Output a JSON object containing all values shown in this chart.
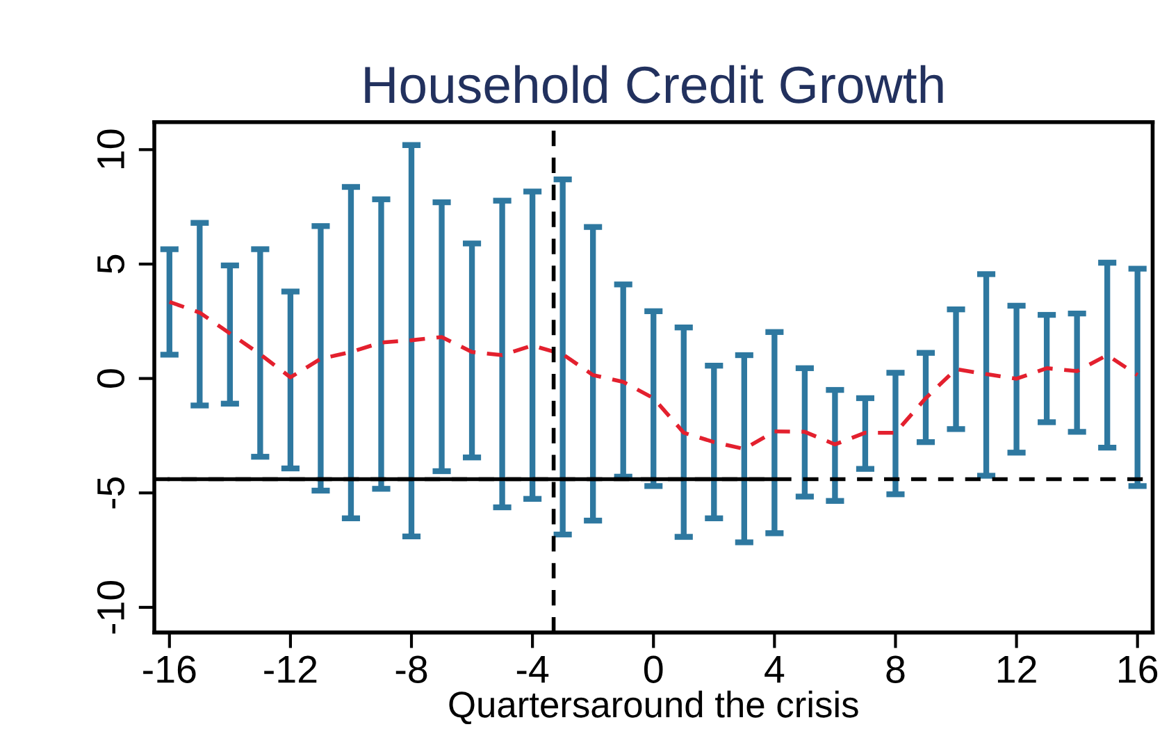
{
  "chart_data": {
    "type": "line",
    "title": "Household Credit Growth",
    "xlabel": "Quartersaround the crisis",
    "x": [
      -16,
      -15,
      -14,
      -13,
      -12,
      -11,
      -10,
      -9,
      -8,
      -7,
      -6,
      -5,
      -4,
      -3,
      -2,
      -1,
      0,
      1,
      2,
      3,
      4,
      5,
      6,
      7,
      8,
      9,
      10,
      11,
      12,
      13,
      14,
      15,
      16
    ],
    "series": [
      {
        "line_style": "dashed",
        "color": "#e3202e",
        "values": [
          3.35,
          2.88,
          1.97,
          1.06,
          0.05,
          0.86,
          1.16,
          1.57,
          1.67,
          1.81,
          1.16,
          1.02,
          1.44,
          1.06,
          0.15,
          -0.15,
          -0.86,
          -2.37,
          -2.78,
          -3.08,
          -2.31,
          -2.33,
          -2.88,
          -2.37,
          -2.37,
          -0.86,
          0.41,
          0.19,
          -0.01,
          0.45,
          0.32,
          1.02,
          0.15
        ],
        "colors": [
          "#2e78a0",
          "#2e78a0",
          "#2e78a0",
          "#2e78a0",
          "#2e78a0",
          "#2e78a0",
          "#2e78a0",
          "#2e78a0",
          "#2e78a0",
          "#2e78a0",
          "#2e78a0",
          "#2e78a0",
          "#2e78a0",
          "#2e78a0",
          "#2e78a0",
          "#2e78a0",
          "#2e78a0",
          "#2e78a0",
          "#2e78a0",
          "#2e78a0",
          "#2e78a0",
          "#2e78a0",
          "#2e78a0",
          "#2e78a0",
          "#2e78a0",
          "#2e78a0",
          "#2e78a0",
          "#2e78a0",
          "#2e78a0",
          "#2e78a0",
          "#2e78a0",
          "#2e78a0",
          "#2e78a0"
        ],
        "errors": [
          [
            1.04,
            5.65
          ],
          [
            -1.18,
            6.8
          ],
          [
            -1.1,
            4.94
          ],
          [
            -3.42,
            5.65
          ],
          [
            -3.93,
            3.8
          ],
          [
            -4.9,
            6.66
          ],
          [
            -6.11,
            8.37
          ],
          [
            -4.82,
            7.83
          ],
          [
            -6.9,
            10.2
          ],
          [
            -4.05,
            7.7
          ],
          [
            -3.45,
            5.9
          ],
          [
            -5.63,
            7.77
          ],
          [
            -5.26,
            8.17
          ],
          [
            -6.82,
            8.7
          ],
          [
            -6.21,
            6.62
          ],
          [
            -4.29,
            4.11
          ],
          [
            -4.7,
            2.94
          ],
          [
            -6.92,
            2.23
          ],
          [
            -6.11,
            0.56
          ],
          [
            -7.16,
            1.02
          ],
          [
            -6.76,
            2.03
          ],
          [
            -5.16,
            0.45
          ],
          [
            -5.35,
            -0.5
          ],
          [
            -3.95,
            -0.86
          ],
          [
            -5.06,
            0.25
          ],
          [
            -2.78,
            1.12
          ],
          [
            -2.21,
            3.02
          ],
          [
            -4.25,
            4.56
          ],
          [
            -3.24,
            3.18
          ],
          [
            -1.91,
            2.78
          ],
          [
            -2.33,
            2.84
          ],
          [
            -3.02,
            5.06
          ],
          [
            -4.7,
            4.8
          ]
        ]
      },
      {
        "line_style": "solid",
        "color": "#000000",
        "x": [
          -16,
          4
        ],
        "values": [
          -4.4,
          -4.4
        ]
      }
    ],
    "ref_lines": [
      {
        "axis": "y",
        "value": -4.4,
        "color": "#000000",
        "line_style": "dashed"
      },
      {
        "axis": "x",
        "value": -3.3,
        "color": "#000000",
        "line_style": "dashed"
      }
    ],
    "xlim": [
      -16.5,
      16.5
    ],
    "ylim": [
      -11.1,
      11.2
    ],
    "xticks": [
      -16,
      -12,
      -8,
      -4,
      0,
      4,
      8,
      12,
      16
    ],
    "yticks": [
      -10,
      -5,
      0,
      5,
      10
    ],
    "grid": false,
    "legend": false
  }
}
